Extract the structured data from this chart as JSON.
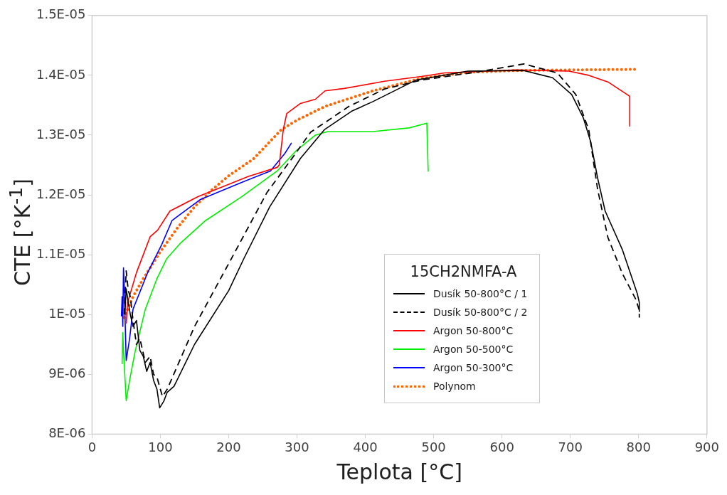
{
  "chart_data": {
    "type": "line",
    "xlabel": "Teplota [°C]",
    "ylabel": "CTE [°K$^{-1}$]",
    "legend_title": "15CH2NMFA-A",
    "xlim": [
      0,
      900
    ],
    "xticks": [
      0,
      100,
      200,
      300,
      400,
      500,
      600,
      700,
      800,
      900
    ],
    "ylim": [
      8e-06,
      1.5e-05
    ],
    "yticks": [
      {
        "value": 8e-06,
        "label": "8E-06"
      },
      {
        "value": 9e-06,
        "label": "9E-06"
      },
      {
        "value": 1e-05,
        "label": "1E-05"
      },
      {
        "value": 1.1e-05,
        "label": "1.1E-05"
      },
      {
        "value": 1.2e-05,
        "label": "1.2E-05"
      },
      {
        "value": 1.3e-05,
        "label": "1.3E-05"
      },
      {
        "value": 1.4e-05,
        "label": "1.4E-05"
      },
      {
        "value": 1.5e-05,
        "label": "1.5E-05"
      }
    ],
    "grid": false,
    "legend": "bottom right",
    "marker": "none",
    "series": [
      {
        "name": "Dusík 50-800°C / 1",
        "color": "#000000",
        "line_style": "solid",
        "x": [
          48,
          50,
          53,
          56,
          60,
          65,
          70,
          75,
          80,
          85,
          90,
          95,
          99,
          105,
          110,
          120,
          150,
          200,
          222,
          260,
          305,
          340,
          380,
          411,
          474,
          550,
          632,
          674,
          702,
          719,
          730,
          740,
          751,
          776,
          798,
          801,
          801
        ],
        "values": [
          1e-05,
          1.043e-05,
          1.02e-05,
          1e-05,
          9.8e-06,
          9.9e-06,
          9.4e-06,
          9.3e-06,
          9.05e-06,
          9.2e-06,
          8.9e-06,
          8.75e-06,
          8.44e-06,
          8.55e-06,
          8.7e-06,
          8.8e-06,
          9.5e-06,
          1.04e-05,
          1.093e-05,
          1.18e-05,
          1.261e-05,
          1.309e-05,
          1.34e-05,
          1.356e-05,
          1.392e-05,
          1.407e-05,
          1.408e-05,
          1.396e-05,
          1.368e-05,
          1.329e-05,
          1.288e-05,
          1.228e-05,
          1.173e-05,
          1.109e-05,
          1.035e-05,
          1.02e-05,
          1.005e-05
        ]
      },
      {
        "name": "Dusík 50-800°C / 2",
        "color": "#000000",
        "line_style": "dashed",
        "x": [
          47,
          50,
          53,
          56,
          60,
          65,
          70,
          78,
          85,
          90,
          95,
          103,
          110,
          150,
          208,
          256,
          292,
          320,
          376,
          428,
          482,
          560,
          632,
          681,
          708,
          727,
          740,
          755,
          776,
          796,
          801,
          801
        ],
        "values": [
          1e-05,
          1.073e-05,
          1.04e-05,
          1.03e-05,
          9.9e-06,
          9.5e-06,
          9.6e-06,
          9.2e-06,
          9.3e-06,
          9e-06,
          8.95e-06,
          8.63e-06,
          8.75e-06,
          9.8e-06,
          1.102e-05,
          1.204e-05,
          1.26e-05,
          1.305e-05,
          1.348e-05,
          1.377e-05,
          1.392e-05,
          1.405e-05,
          1.419e-05,
          1.404e-05,
          1.368e-05,
          1.309e-05,
          1.209e-05,
          1.129e-05,
          1.069e-05,
          1.025e-05,
          1.007e-05,
          9.95e-06
        ]
      },
      {
        "name": "Argon 50-800°C",
        "color": "#ff0000",
        "line_style": "solid",
        "x": [
          50,
          52,
          65,
          85,
          96,
          114,
          155,
          229,
          271,
          274,
          280,
          285,
          305,
          327,
          341,
          369,
          428,
          482,
          516,
          621,
          698,
          727,
          755,
          787,
          787
        ],
        "values": [
          9.85e-06,
          1.02e-05,
          1.07e-05,
          1.13e-05,
          1.141e-05,
          1.173e-05,
          1.197e-05,
          1.231e-05,
          1.246e-05,
          1.25e-05,
          1.31e-05,
          1.336e-05,
          1.353e-05,
          1.36e-05,
          1.374e-05,
          1.378e-05,
          1.39e-05,
          1.398e-05,
          1.404e-05,
          1.409e-05,
          1.407e-05,
          1.4e-05,
          1.389e-05,
          1.365e-05,
          1.315e-05
        ]
      },
      {
        "name": "Argon 50-500°C",
        "color": "#00ee00",
        "line_style": "solid",
        "x": [
          44,
          45,
          46,
          50,
          55,
          63,
          78,
          95,
          109,
          130,
          166,
          219,
          271,
          298,
          327,
          345,
          411,
          464,
          490,
          492
        ],
        "values": [
          9.17e-06,
          9.7e-06,
          9.4e-06,
          8.56e-06,
          8.9e-06,
          9.38e-06,
          1.009e-05,
          1.06e-05,
          1.093e-05,
          1.12e-05,
          1.157e-05,
          1.197e-05,
          1.24e-05,
          1.273e-05,
          1.3e-05,
          1.306e-05,
          1.306e-05,
          1.312e-05,
          1.32e-05,
          1.239e-05
        ]
      },
      {
        "name": "Argon 50-300°C",
        "color": "#0000ff",
        "line_style": "solid",
        "x": [
          43,
          44,
          45,
          46,
          47,
          50,
          55,
          60,
          81,
          102,
          117,
          158,
          219,
          261,
          282,
          292
        ],
        "values": [
          9.97e-06,
          1.03e-05,
          9.8e-06,
          1.078e-05,
          1.05e-05,
          9.23e-06,
          9.6e-06,
          1.009e-05,
          1.069e-05,
          1.117e-05,
          1.157e-05,
          1.192e-05,
          1.221e-05,
          1.24e-05,
          1.269e-05,
          1.287e-05
        ]
      },
      {
        "name": "Polynom",
        "color": "#ff6600",
        "line_style": "dotted",
        "x": [
          47,
          60,
          75,
          100,
          125,
          150,
          176,
          200,
          236,
          277,
          300,
          341,
          411,
          482,
          550,
          620,
          700,
          800
        ],
        "values": [
          9.95e-06,
          1.03e-05,
          1.06e-05,
          1.105e-05,
          1.145e-05,
          1.18e-05,
          1.209e-05,
          1.232e-05,
          1.26e-05,
          1.309e-05,
          1.325e-05,
          1.348e-05,
          1.374e-05,
          1.395e-05,
          1.405e-05,
          1.408e-05,
          1.409e-05,
          1.41e-05
        ]
      }
    ]
  }
}
